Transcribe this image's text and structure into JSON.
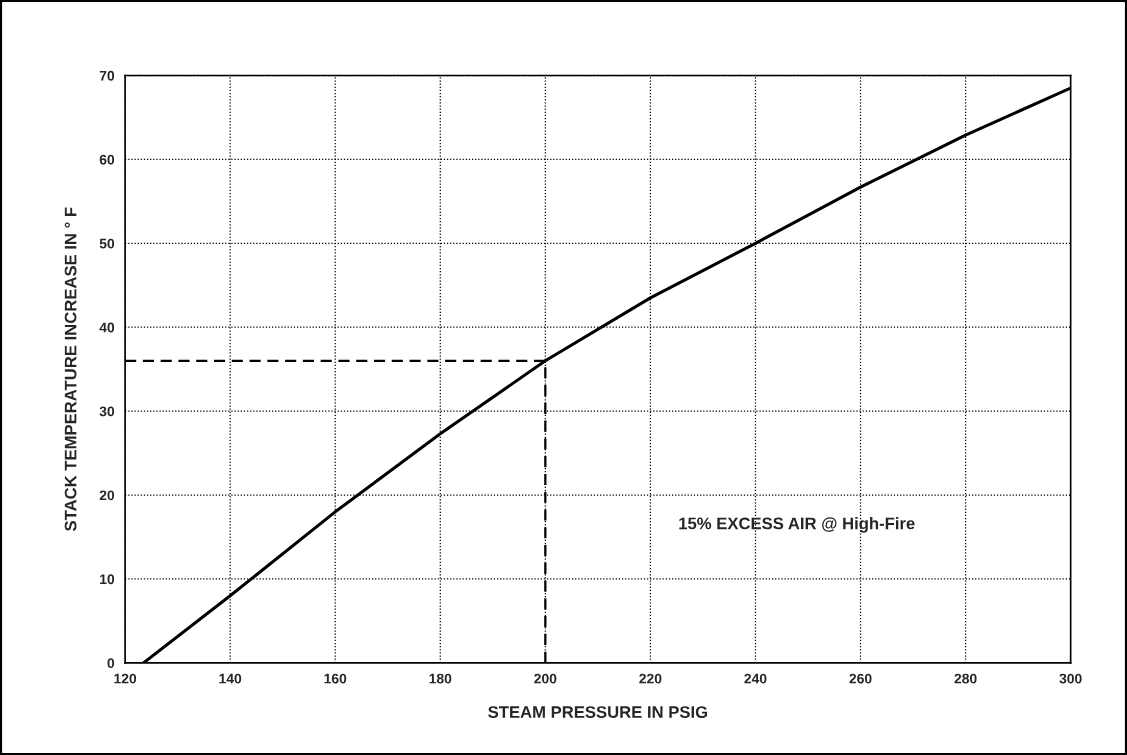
{
  "chart_data": {
    "type": "line",
    "xlabel": "STEAM PRESSURE IN PSIG",
    "ylabel": "STACK TEMPERATURE INCREASE IN ° F",
    "xlim": [
      120,
      300
    ],
    "ylim": [
      0,
      70
    ],
    "xticks": [
      120,
      140,
      160,
      180,
      200,
      220,
      240,
      260,
      280,
      300
    ],
    "yticks": [
      0,
      10,
      20,
      30,
      40,
      50,
      60,
      70
    ],
    "grid": true,
    "series": [
      {
        "color": "#000000",
        "line_style": "solid",
        "x": [
          123.5,
          140,
          160,
          180,
          200,
          220,
          240,
          260,
          280,
          300
        ],
        "values": [
          0,
          8,
          18,
          27.3,
          36,
          43.5,
          50,
          56.7,
          62.9,
          68.5
        ]
      },
      {
        "color": "#000000",
        "line_style": "dashed",
        "x": [
          120,
          200,
          200
        ],
        "values": [
          36,
          36,
          0
        ]
      }
    ],
    "annotations": [
      "15% EXCESS AIR @ High-Fire"
    ]
  }
}
